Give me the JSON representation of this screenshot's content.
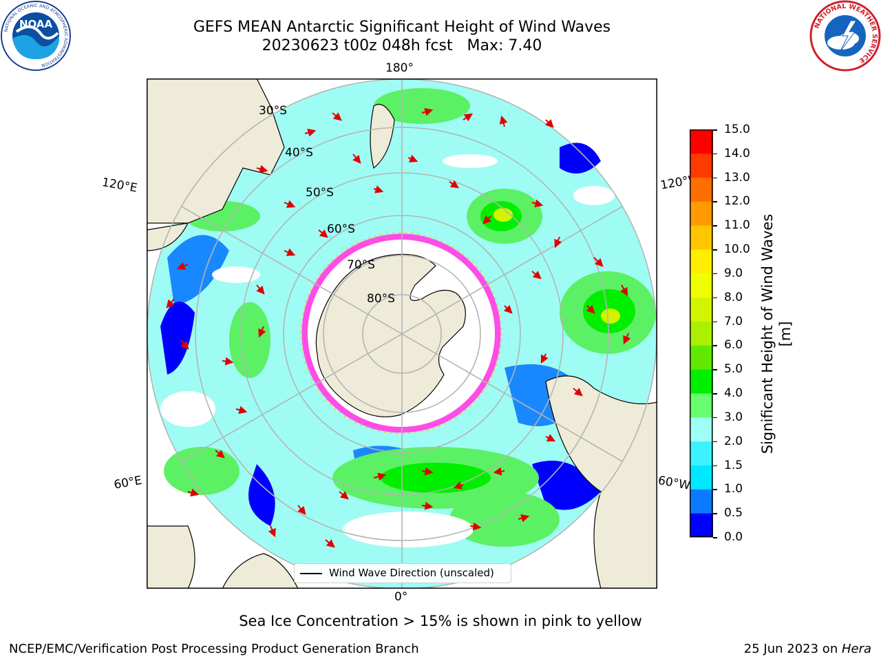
{
  "title": {
    "line1": "GEFS MEAN Antarctic Significant Height of Wind Waves",
    "line2": "20230623 t00z 048h fcst   Max: 7.40"
  },
  "map": {
    "projection": "south-polar-stereographic",
    "longitude_labels": [
      "180°",
      "120°E",
      "120°W",
      "60°E",
      "60°W",
      "0°"
    ],
    "latitude_labels": [
      "30°S",
      "40°S",
      "50°S",
      "60°S",
      "70°S",
      "80°S"
    ],
    "colors": {
      "land": "#efebd9",
      "ocean_no_data": "#ffffff",
      "grid": "#b4b4b4",
      "arrow": "#e00000",
      "coast": "#000000"
    }
  },
  "colorbar": {
    "label": "Significant Height of Wind Waves [m]",
    "ticks": [
      "0.0",
      "0.5",
      "1.0",
      "1.5",
      "2.0",
      "3.0",
      "4.0",
      "5.0",
      "6.0",
      "7.0",
      "8.0",
      "9.0",
      "10.0",
      "11.0",
      "12.0",
      "13.0",
      "14.0",
      "15.0"
    ],
    "colors": [
      "#0000ff",
      "#0a7bff",
      "#00e8ff",
      "#3cf2ff",
      "#a0fff5",
      "#66ff6e",
      "#00ee00",
      "#62e800",
      "#aaf000",
      "#d2f400",
      "#f0ff00",
      "#ffee00",
      "#ffc600",
      "#ff9a00",
      "#ff6e00",
      "#ff3a00",
      "#ff0000"
    ]
  },
  "legend": {
    "label": "Wind Wave Direction (unscaled)"
  },
  "note": "Sea Ice Concentration > 15% is shown in pink to yellow",
  "footer": {
    "left": "NCEP/EMC/Verification Post Processing Product Generation Branch",
    "right_date": "25 Jun 2023 on ",
    "right_host": "Hera"
  },
  "logos": {
    "left": {
      "text": "NOAA",
      "ring": "NATIONAL OCEANIC AND ATMOSPHERIC ADMINISTRATION"
    },
    "right": {
      "ring": "NATIONAL WEATHER SERVICE"
    }
  }
}
